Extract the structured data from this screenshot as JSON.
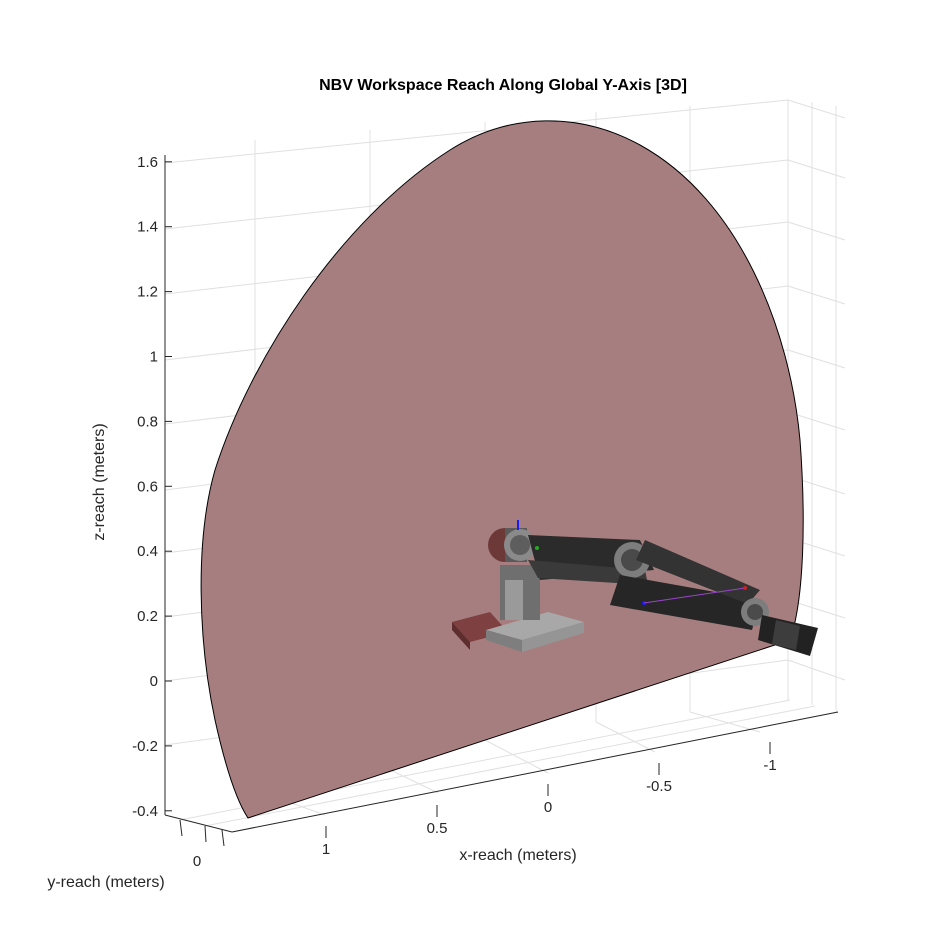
{
  "chart_data": {
    "type": "3d-surface",
    "title": "NBV Workspace Reach Along Global Y-Axis [3D]",
    "xlabel": "x-reach (meters)",
    "ylabel": "y-reach (meters)",
    "zlabel": "z-reach (meters)",
    "x_ticks": [
      1,
      0.5,
      0,
      -0.5,
      -1
    ],
    "y_ticks": [
      0
    ],
    "z_ticks": [
      1.6,
      1.4,
      1.2,
      1,
      0.8,
      0.6,
      0.4,
      0.2,
      0,
      -0.2,
      -0.4
    ],
    "z_tick_labels": [
      "1.6",
      "1.4",
      "1.2",
      "1",
      "0.8",
      "0.6",
      "0.4",
      "0.2",
      "0",
      "-0.2",
      "-0.4"
    ],
    "x_tick_labels": [
      "1",
      "0.5",
      "0",
      "-0.5",
      "-1"
    ],
    "y_tick_labels": [
      "0"
    ],
    "zlim": [
      -0.42,
      1.65
    ],
    "grid": true,
    "surface_color": "#a47b7c",
    "surface_edge_color": "#000000",
    "robot_colors": {
      "link": "#2b2b2b",
      "joint": "#7d7d7d",
      "base": "#a3a3a3",
      "pad": "#7e4040"
    }
  }
}
